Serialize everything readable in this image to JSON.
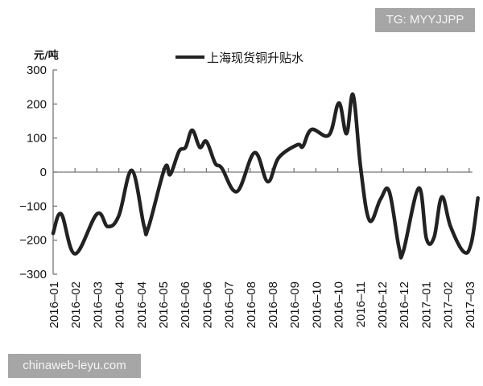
{
  "watermarks": {
    "top_right": "TG: MYYJJPP",
    "bottom_left": "chinaweb-leyu.com"
  },
  "chart_data": {
    "type": "line",
    "title": "",
    "ylabel": "元/吨",
    "xlabel": "",
    "ylim": [
      -300,
      300
    ],
    "y_ticks": [
      "300",
      "200",
      "100",
      "0",
      "-100",
      "-200",
      "-300"
    ],
    "x_tick_labels": [
      "2016-01",
      "2016-02",
      "2016-03",
      "2016-04",
      "2016-04",
      "2016-05",
      "2016-06",
      "2016-06",
      "2016-07",
      "2016-08",
      "2016-08",
      "2016-09",
      "2016-10",
      "2016-10",
      "2016-11",
      "2016-12",
      "2016-12",
      "2017-01",
      "2017-02",
      "2017-03"
    ],
    "legend": {
      "position": "top-center",
      "entries": [
        "上海现货铜升贴水"
      ]
    },
    "grid": false,
    "series": [
      {
        "name": "上海现货铜升贴水",
        "color": "#222222",
        "points_x_index": [
          0,
          0.37,
          1.0,
          2.0,
          2.5,
          3.0,
          3.6,
          4.15,
          4.35,
          5.1,
          5.35,
          5.75,
          6.05,
          6.35,
          6.7,
          7.0,
          7.4,
          7.7,
          8.4,
          9.2,
          9.8,
          10.3,
          11.15,
          11.4,
          11.8,
          12.6,
          13.05,
          13.4,
          13.7,
          14.05,
          14.45,
          14.95,
          15.35,
          15.8,
          16.0,
          16.7,
          17.05,
          17.4,
          17.75,
          18.15,
          18.75,
          19.1,
          19.4
        ],
        "values": [
          -180,
          -123,
          -240,
          -123,
          -160,
          -128,
          5,
          -158,
          -163,
          12,
          -7,
          61,
          73,
          123,
          73,
          90,
          26,
          12,
          -57,
          57,
          -28,
          42,
          80,
          75,
          125,
          109,
          203,
          113,
          227,
          9,
          -142,
          -80,
          -57,
          -224,
          -231,
          -47,
          -196,
          -191,
          -73,
          -160,
          -234,
          -208,
          -76
        ]
      }
    ]
  }
}
